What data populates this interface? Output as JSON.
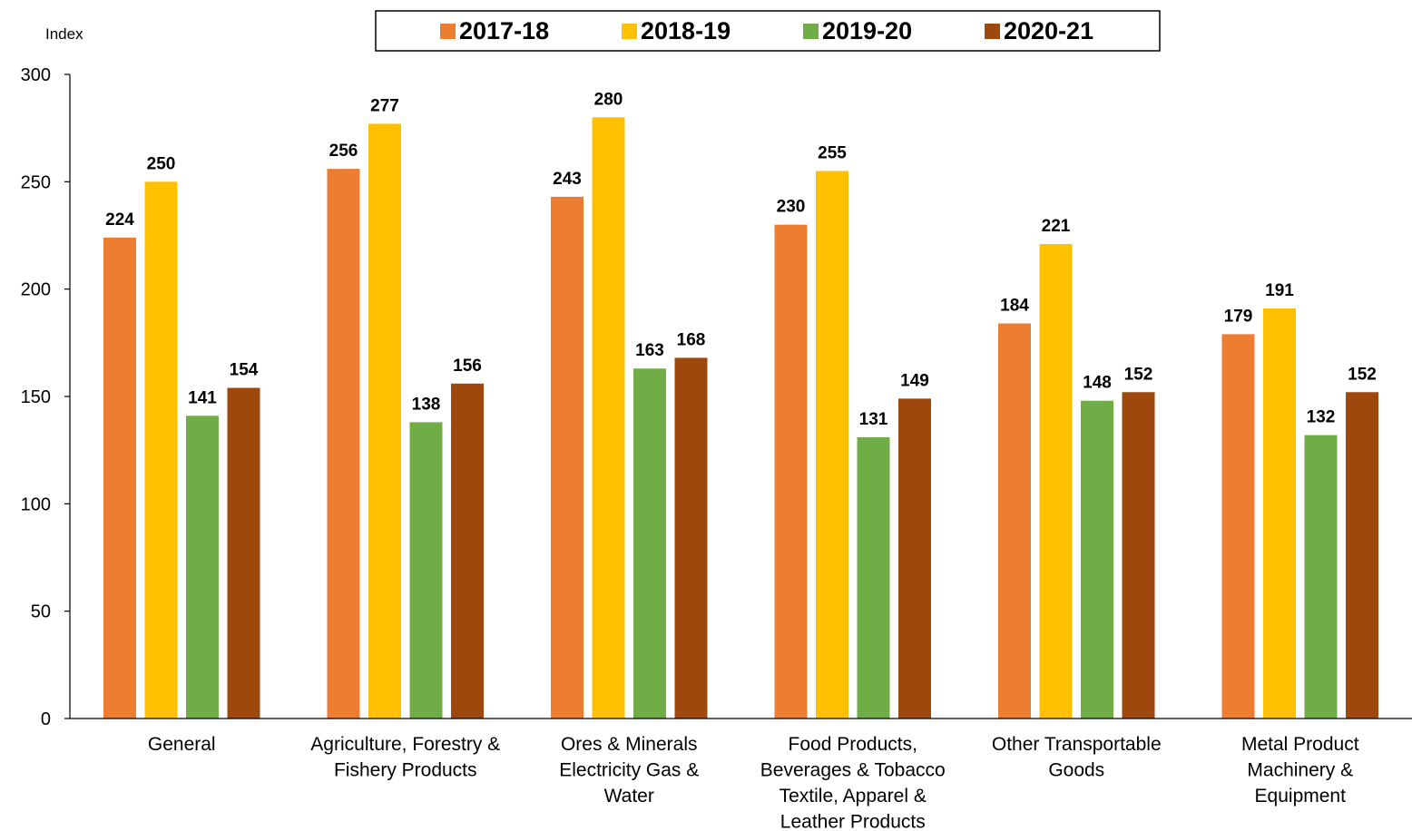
{
  "chart_data": {
    "type": "bar",
    "ylabel": "Index",
    "ylim": [
      0,
      300
    ],
    "yticks": [
      0,
      50,
      100,
      150,
      200,
      250,
      300
    ],
    "grid": false,
    "legend_position": "top",
    "categories": [
      [
        "General"
      ],
      [
        "Agriculture, Forestry &",
        "Fishery Products"
      ],
      [
        "Ores & Minerals",
        "Electricity Gas &",
        "Water"
      ],
      [
        "Food Products,",
        "Beverages & Tobacco",
        "Textile, Apparel &",
        "Leather Products"
      ],
      [
        "Other Transportable",
        "Goods"
      ],
      [
        "Metal Product",
        "Machinery &",
        "Equipment"
      ]
    ],
    "series": [
      {
        "name": "2017-18",
        "color": "#ED7D31",
        "values": [
          224,
          256,
          243,
          230,
          184,
          179
        ]
      },
      {
        "name": "2018-19",
        "color": "#FFC000",
        "values": [
          250,
          277,
          280,
          255,
          221,
          191
        ]
      },
      {
        "name": "2019-20",
        "color": "#70AD47",
        "values": [
          141,
          138,
          163,
          131,
          148,
          132
        ]
      },
      {
        "name": "2020-21",
        "color": "#9E480E",
        "values": [
          154,
          156,
          168,
          149,
          152,
          152
        ]
      }
    ]
  }
}
